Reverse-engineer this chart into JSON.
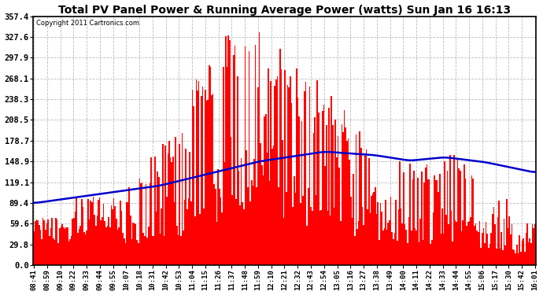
{
  "title": "Total PV Panel Power & Running Average Power (watts) Sun Jan 16 16:13",
  "copyright": "Copyright 2011 Cartronics.com",
  "yticks": [
    0.0,
    29.8,
    59.6,
    89.4,
    119.1,
    148.9,
    178.7,
    208.5,
    238.3,
    268.1,
    297.9,
    327.6,
    357.4
  ],
  "ymax": 357.4,
  "ymin": 0.0,
  "bg_color": "#ffffff",
  "bar_color": "#ff0000",
  "line_color": "#0000cd",
  "grid_color": "#bbbbbb",
  "x_labels": [
    "08:41",
    "08:59",
    "09:10",
    "09:22",
    "09:33",
    "09:44",
    "09:55",
    "10:07",
    "10:18",
    "10:31",
    "10:42",
    "10:53",
    "11:04",
    "11:15",
    "11:26",
    "11:37",
    "11:48",
    "11:59",
    "12:10",
    "12:21",
    "12:32",
    "12:43",
    "12:54",
    "13:05",
    "13:16",
    "13:27",
    "13:38",
    "13:49",
    "14:00",
    "14:11",
    "14:22",
    "14:33",
    "14:44",
    "14:55",
    "15:06",
    "15:17",
    "15:30",
    "15:42",
    "16:01"
  ]
}
